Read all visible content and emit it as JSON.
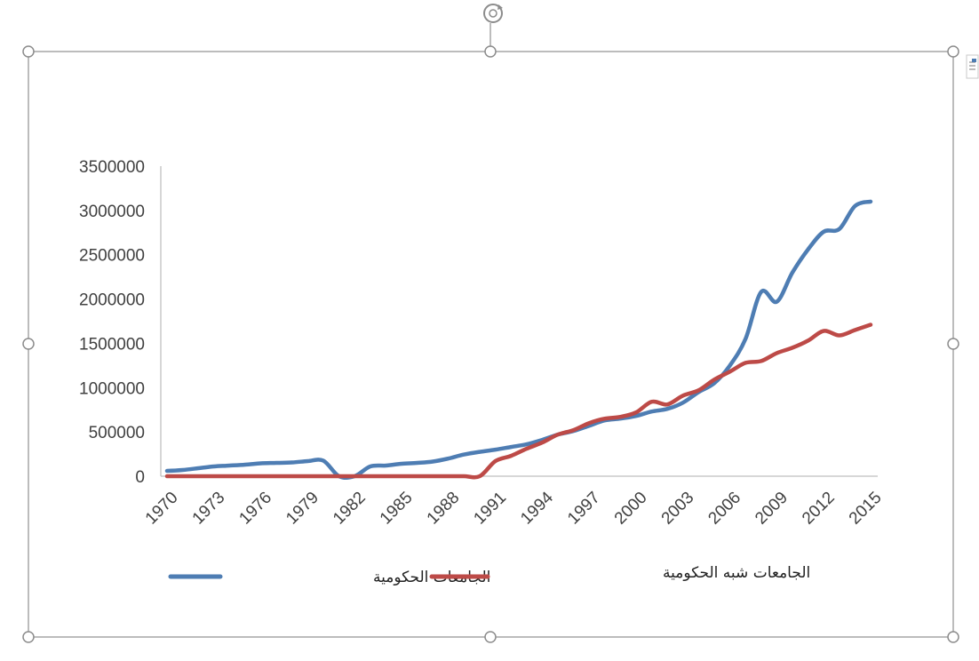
{
  "colors": {
    "government": "#4e7db3",
    "semi_government": "#bd4a47",
    "axis": "#bfbfbf",
    "frame": "#a6a6a6"
  },
  "icons": {
    "rotate_handle": "rotate-icon",
    "layout_options": "layout-options-icon"
  },
  "chart_data": {
    "type": "line",
    "title": "",
    "xlabel": "",
    "ylabel": "",
    "ylim": [
      0,
      3500000
    ],
    "xlim": [
      1970,
      2015
    ],
    "y_ticks": [
      "0",
      "500000",
      "1000000",
      "1500000",
      "2000000",
      "2500000",
      "3000000",
      "3500000"
    ],
    "x_ticks": [
      "1970",
      "1973",
      "1976",
      "1979",
      "1982",
      "1985",
      "1988",
      "1991",
      "1994",
      "1997",
      "2000",
      "2003",
      "2006",
      "2009",
      "2012",
      "2015"
    ],
    "grid": false,
    "legend_position": "bottom",
    "series": [
      {
        "name": "الجامعات الحكومية",
        "color": "#4e7db3",
        "x": [
          1970,
          1971,
          1972,
          1973,
          1974,
          1975,
          1976,
          1977,
          1978,
          1979,
          1980,
          1981,
          1982,
          1983,
          1984,
          1985,
          1986,
          1987,
          1988,
          1989,
          1990,
          1991,
          1992,
          1993,
          1994,
          1995,
          1996,
          1997,
          1998,
          1999,
          2000,
          2001,
          2002,
          2003,
          2004,
          2005,
          2006,
          2007,
          2008,
          2009,
          2010,
          2011,
          2012,
          2013,
          2014,
          2015
        ],
        "values": [
          60000,
          70000,
          90000,
          110000,
          120000,
          130000,
          145000,
          150000,
          155000,
          170000,
          175000,
          0,
          0,
          110000,
          120000,
          140000,
          150000,
          165000,
          200000,
          245000,
          275000,
          300000,
          330000,
          360000,
          410000,
          470000,
          510000,
          570000,
          630000,
          650000,
          680000,
          730000,
          760000,
          830000,
          950000,
          1050000,
          1250000,
          1550000,
          2080000,
          1970000,
          2300000,
          2560000,
          2760000,
          2790000,
          3050000,
          3100000
        ]
      },
      {
        "name": "الجامعات شبه الحكومية",
        "color": "#bd4a47",
        "x": [
          1970,
          1971,
          1972,
          1973,
          1974,
          1975,
          1976,
          1977,
          1978,
          1979,
          1980,
          1981,
          1982,
          1983,
          1984,
          1985,
          1986,
          1987,
          1988,
          1989,
          1990,
          1991,
          1992,
          1993,
          1994,
          1995,
          1996,
          1997,
          1998,
          1999,
          2000,
          2001,
          2002,
          2003,
          2004,
          2005,
          2006,
          2007,
          2008,
          2009,
          2010,
          2011,
          2012,
          2013,
          2014,
          2015
        ],
        "values": [
          0,
          0,
          0,
          0,
          0,
          0,
          0,
          0,
          0,
          0,
          0,
          0,
          0,
          0,
          0,
          0,
          0,
          0,
          0,
          0,
          0,
          170000,
          230000,
          310000,
          380000,
          470000,
          520000,
          600000,
          650000,
          670000,
          720000,
          840000,
          810000,
          910000,
          970000,
          1090000,
          1180000,
          1280000,
          1300000,
          1390000,
          1450000,
          1530000,
          1640000,
          1590000,
          1650000,
          1710000
        ]
      }
    ]
  }
}
